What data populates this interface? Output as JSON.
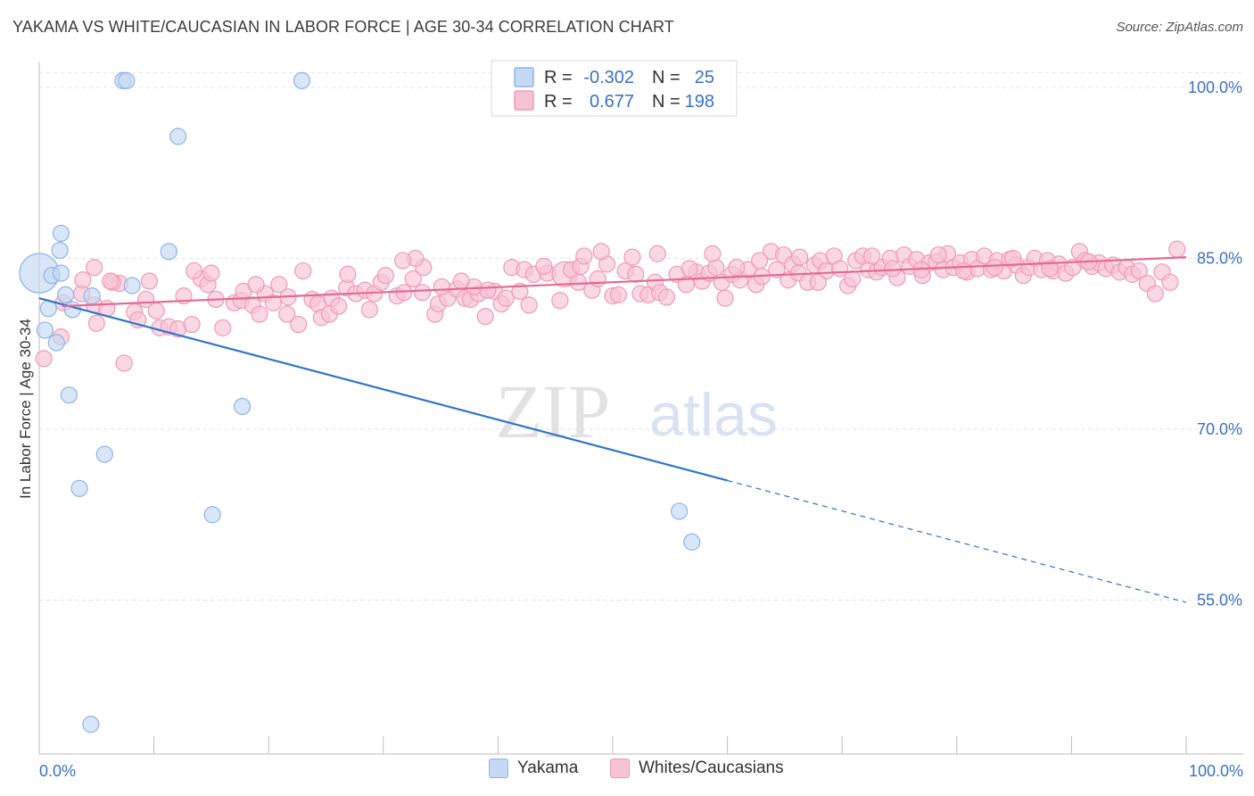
{
  "title": "YAKAMA VS WHITE/CAUCASIAN IN LABOR FORCE | AGE 30-34 CORRELATION CHART",
  "source": "Source: ZipAtlas.com",
  "watermark": {
    "zip": "ZIP",
    "atlas": "atlas"
  },
  "chart_data": {
    "type": "scatter",
    "ylabel": "In Labor Force | Age 30-34",
    "xlim": [
      0,
      100
    ],
    "ylim": [
      40,
      103
    ],
    "x_tick_labels": [
      "0.0%",
      "100.0%"
    ],
    "y_ticks": [
      {
        "value": 100,
        "label": "100.0%"
      },
      {
        "value": 85,
        "label": "85.0%"
      },
      {
        "value": 70,
        "label": "70.0%"
      },
      {
        "value": 55,
        "label": "55.0%"
      }
    ],
    "legend_stats": [
      {
        "r_label": "R =",
        "r_value": "-0.302",
        "n_label": "N =",
        "n_value": "25"
      },
      {
        "r_label": "R =",
        "r_value": "0.677",
        "n_label": "N =",
        "n_value": "198"
      }
    ],
    "series": [
      {
        "name": "Yakama",
        "color": "#8fb4e8",
        "fill": "#c5d9f5",
        "line_color": "#2f75cc",
        "trend": {
          "x0": 0,
          "y0": 81.5,
          "x1": 60,
          "y1": 65.5,
          "dash_to_x": 100,
          "dash_to_y": 54.8
        },
        "points": [
          [
            0,
            83.7,
            22
          ],
          [
            1.1,
            83.5,
            9
          ],
          [
            1.9,
            83.7,
            9
          ],
          [
            2.3,
            81.8,
            9
          ],
          [
            0.8,
            80.6,
            9
          ],
          [
            2.9,
            80.5,
            9
          ],
          [
            0.5,
            78.7,
            9
          ],
          [
            1.5,
            77.6,
            9
          ],
          [
            1.8,
            85.7,
            9
          ],
          [
            1.9,
            87.2,
            9
          ],
          [
            7.3,
            100.6,
            9
          ],
          [
            7.6,
            100.6,
            9
          ],
          [
            22.9,
            100.6,
            9
          ],
          [
            12.1,
            95.7,
            9
          ],
          [
            11.3,
            85.6,
            9
          ],
          [
            8.1,
            82.6,
            9
          ],
          [
            4.6,
            81.7,
            9
          ],
          [
            2.6,
            73.0,
            9
          ],
          [
            17.7,
            72.0,
            9
          ],
          [
            5.7,
            67.8,
            9
          ],
          [
            3.5,
            64.8,
            9
          ],
          [
            15.1,
            62.5,
            9
          ],
          [
            55.8,
            62.8,
            9
          ],
          [
            56.9,
            60.1,
            9
          ],
          [
            4.5,
            44.1,
            9
          ]
        ]
      },
      {
        "name": "Whites/Caucasians",
        "color": "#ef9ab6",
        "fill": "#f7c3d4",
        "line_color": "#e26b95",
        "trend": {
          "x0": 2,
          "y0": 80.8,
          "x1": 100,
          "y1": 85.1
        },
        "points": [
          [
            0.4,
            76.2,
            9
          ],
          [
            2.1,
            81.1,
            9
          ],
          [
            1.9,
            78.1,
            9
          ],
          [
            3.7,
            81.9,
            9
          ],
          [
            4.8,
            84.2,
            9
          ],
          [
            3.8,
            83.1,
            9
          ],
          [
            4.8,
            80.9,
            9
          ],
          [
            5.0,
            79.3,
            9
          ],
          [
            5.9,
            80.6,
            9
          ],
          [
            7.0,
            82.8,
            9
          ],
          [
            8.3,
            80.3,
            9
          ],
          [
            6.4,
            82.9,
            9
          ],
          [
            7.4,
            75.8,
            9
          ],
          [
            8.6,
            79.6,
            9
          ],
          [
            9.3,
            81.4,
            9
          ],
          [
            9.6,
            83.0,
            9
          ],
          [
            10.2,
            80.4,
            9
          ],
          [
            10.5,
            78.9,
            9
          ],
          [
            11.3,
            79.0,
            9
          ],
          [
            12.1,
            78.8,
            9
          ],
          [
            12.6,
            81.7,
            9
          ],
          [
            13.3,
            79.2,
            9
          ],
          [
            14.1,
            83.2,
            9
          ],
          [
            14.7,
            82.7,
            9
          ],
          [
            15.0,
            83.7,
            9
          ],
          [
            15.4,
            81.4,
            9
          ],
          [
            16.0,
            78.9,
            9
          ],
          [
            17.0,
            81.1,
            9
          ],
          [
            17.6,
            81.3,
            9
          ],
          [
            17.8,
            82.1,
            9
          ],
          [
            18.6,
            80.9,
            9
          ],
          [
            19.2,
            80.1,
            9
          ],
          [
            19.7,
            81.9,
            9
          ],
          [
            20.4,
            81.1,
            9
          ],
          [
            20.9,
            82.7,
            9
          ],
          [
            21.7,
            81.6,
            9
          ],
          [
            21.6,
            80.1,
            9
          ],
          [
            22.6,
            79.2,
            9
          ],
          [
            23.0,
            83.9,
            9
          ],
          [
            23.8,
            81.4,
            9
          ],
          [
            24.3,
            81.0,
            9
          ],
          [
            24.6,
            79.8,
            9
          ],
          [
            25.3,
            80.1,
            9
          ],
          [
            25.5,
            81.5,
            9
          ],
          [
            26.1,
            80.8,
            9
          ],
          [
            26.8,
            82.4,
            9
          ],
          [
            27.6,
            81.9,
            9
          ],
          [
            28.4,
            82.2,
            9
          ],
          [
            28.8,
            80.5,
            9
          ],
          [
            29.2,
            81.9,
            9
          ],
          [
            29.8,
            82.9,
            9
          ],
          [
            30.2,
            83.5,
            9
          ],
          [
            31.2,
            81.7,
            9
          ],
          [
            31.8,
            82.0,
            9
          ],
          [
            32.6,
            83.2,
            9
          ],
          [
            33.4,
            82.0,
            9
          ],
          [
            33.5,
            84.2,
            9
          ],
          [
            32.8,
            85.0,
            9
          ],
          [
            34.5,
            80.1,
            9
          ],
          [
            34.8,
            81.0,
            9
          ],
          [
            35.6,
            81.5,
            9
          ],
          [
            36.4,
            82.3,
            9
          ],
          [
            37.1,
            81.5,
            9
          ],
          [
            37.6,
            81.4,
            9
          ],
          [
            38.3,
            81.9,
            9
          ],
          [
            38.9,
            79.9,
            9
          ],
          [
            39.7,
            82.1,
            9
          ],
          [
            37.9,
            82.5,
            9
          ],
          [
            40.3,
            81.0,
            9
          ],
          [
            40.7,
            81.5,
            9
          ],
          [
            41.2,
            84.2,
            9
          ],
          [
            39.1,
            82.2,
            9
          ],
          [
            41.9,
            82.1,
            9
          ],
          [
            42.3,
            84.0,
            9
          ],
          [
            43.1,
            83.6,
            9
          ],
          [
            44.3,
            83.7,
            9
          ],
          [
            45.8,
            83.6,
            14
          ],
          [
            46.4,
            84.0,
            9
          ],
          [
            47.2,
            84.3,
            9
          ],
          [
            45.4,
            81.3,
            9
          ],
          [
            47.0,
            82.9,
            9
          ],
          [
            47.5,
            85.2,
            9
          ],
          [
            48.2,
            82.2,
            9
          ],
          [
            48.7,
            83.2,
            9
          ],
          [
            49.5,
            84.5,
            9
          ],
          [
            50.0,
            81.7,
            9
          ],
          [
            50.5,
            81.8,
            9
          ],
          [
            51.1,
            83.9,
            9
          ],
          [
            52.0,
            83.6,
            9
          ],
          [
            52.4,
            81.9,
            9
          ],
          [
            53.1,
            81.8,
            9
          ],
          [
            53.7,
            82.9,
            9
          ],
          [
            54.1,
            82.0,
            9
          ],
          [
            54.7,
            81.6,
            9
          ],
          [
            55.6,
            83.6,
            9
          ],
          [
            56.4,
            82.7,
            9
          ],
          [
            57.3,
            83.8,
            9
          ],
          [
            57.8,
            83.0,
            9
          ],
          [
            58.4,
            83.7,
            9
          ],
          [
            59.0,
            84.2,
            9
          ],
          [
            59.5,
            82.9,
            9
          ],
          [
            59.8,
            81.5,
            9
          ],
          [
            60.4,
            83.6,
            9
          ],
          [
            61.1,
            83.1,
            9
          ],
          [
            61.8,
            84.0,
            9
          ],
          [
            62.5,
            82.7,
            9
          ],
          [
            63.0,
            83.4,
            9
          ],
          [
            63.8,
            85.6,
            9
          ],
          [
            64.3,
            84.0,
            9
          ],
          [
            64.9,
            85.3,
            9
          ],
          [
            65.3,
            83.1,
            9
          ],
          [
            65.7,
            84.5,
            9
          ],
          [
            66.2,
            83.7,
            9
          ],
          [
            67.0,
            82.9,
            9
          ],
          [
            67.6,
            84.4,
            9
          ],
          [
            68.1,
            84.8,
            9
          ],
          [
            68.6,
            83.9,
            9
          ],
          [
            69.3,
            85.2,
            9
          ],
          [
            69.8,
            84.1,
            9
          ],
          [
            70.5,
            82.6,
            9
          ],
          [
            71.2,
            84.8,
            9
          ],
          [
            71.8,
            85.2,
            9
          ],
          [
            72.3,
            84.0,
            9
          ],
          [
            73.0,
            83.8,
            9
          ],
          [
            73.5,
            84.2,
            9
          ],
          [
            74.2,
            85.0,
            9
          ],
          [
            74.8,
            83.3,
            9
          ],
          [
            75.4,
            85.3,
            9
          ],
          [
            75.9,
            84.3,
            9
          ],
          [
            76.5,
            84.9,
            9
          ],
          [
            77.0,
            83.5,
            9
          ],
          [
            77.6,
            84.6,
            9
          ],
          [
            78.2,
            84.7,
            9
          ],
          [
            78.8,
            84.0,
            9
          ],
          [
            79.2,
            85.4,
            9
          ],
          [
            79.7,
            84.2,
            9
          ],
          [
            80.3,
            84.6,
            9
          ],
          [
            80.9,
            83.8,
            9
          ],
          [
            81.3,
            84.9,
            9
          ],
          [
            81.8,
            84.1,
            9
          ],
          [
            82.4,
            85.2,
            9
          ],
          [
            83.0,
            84.0,
            9
          ],
          [
            83.5,
            84.8,
            9
          ],
          [
            84.1,
            83.9,
            9
          ],
          [
            84.6,
            84.9,
            9
          ],
          [
            85.2,
            84.4,
            9
          ],
          [
            85.8,
            83.5,
            9
          ],
          [
            86.3,
            84.2,
            9
          ],
          [
            86.8,
            85.0,
            9
          ],
          [
            87.4,
            84.0,
            9
          ],
          [
            87.9,
            84.8,
            9
          ],
          [
            88.4,
            83.9,
            9
          ],
          [
            88.9,
            84.5,
            9
          ],
          [
            89.5,
            83.7,
            9
          ],
          [
            90.1,
            84.2,
            9
          ],
          [
            90.7,
            85.6,
            9
          ],
          [
            91.2,
            84.8,
            9
          ],
          [
            91.8,
            84.3,
            9
          ],
          [
            92.4,
            84.6,
            9
          ],
          [
            93.0,
            84.1,
            9
          ],
          [
            93.6,
            84.4,
            9
          ],
          [
            94.2,
            83.8,
            9
          ],
          [
            94.8,
            84.2,
            9
          ],
          [
            95.3,
            83.6,
            9
          ],
          [
            95.9,
            83.9,
            9
          ],
          [
            96.6,
            82.8,
            9
          ],
          [
            97.3,
            81.9,
            9
          ],
          [
            97.9,
            83.8,
            9
          ],
          [
            98.6,
            82.9,
            9
          ],
          [
            99.2,
            85.8,
            9
          ],
          [
            31.7,
            84.8,
            9
          ],
          [
            36.8,
            83.0,
            9
          ],
          [
            44.0,
            84.3,
            9
          ],
          [
            51.7,
            85.1,
            9
          ],
          [
            58.7,
            85.4,
            9
          ],
          [
            66.3,
            85.1,
            9
          ],
          [
            72.6,
            85.2,
            9
          ],
          [
            78.4,
            85.3,
            9
          ],
          [
            84.9,
            85.0,
            9
          ],
          [
            91.5,
            84.7,
            9
          ],
          [
            6.2,
            83.0,
            9
          ],
          [
            13.5,
            83.9,
            9
          ],
          [
            18.9,
            82.7,
            9
          ],
          [
            26.9,
            83.6,
            9
          ],
          [
            35.1,
            82.5,
            9
          ],
          [
            42.7,
            80.9,
            9
          ],
          [
            49.0,
            85.6,
            9
          ],
          [
            53.9,
            85.4,
            9
          ],
          [
            56.7,
            84.1,
            9
          ],
          [
            60.8,
            84.2,
            9
          ],
          [
            62.8,
            84.8,
            9
          ],
          [
            67.9,
            82.9,
            9
          ],
          [
            70.9,
            83.2,
            9
          ],
          [
            74.4,
            84.1,
            9
          ],
          [
            76.9,
            84.0,
            9
          ],
          [
            80.6,
            83.9,
            9
          ],
          [
            83.3,
            84.2,
            9
          ],
          [
            88.1,
            84.1,
            9
          ]
        ]
      }
    ]
  }
}
